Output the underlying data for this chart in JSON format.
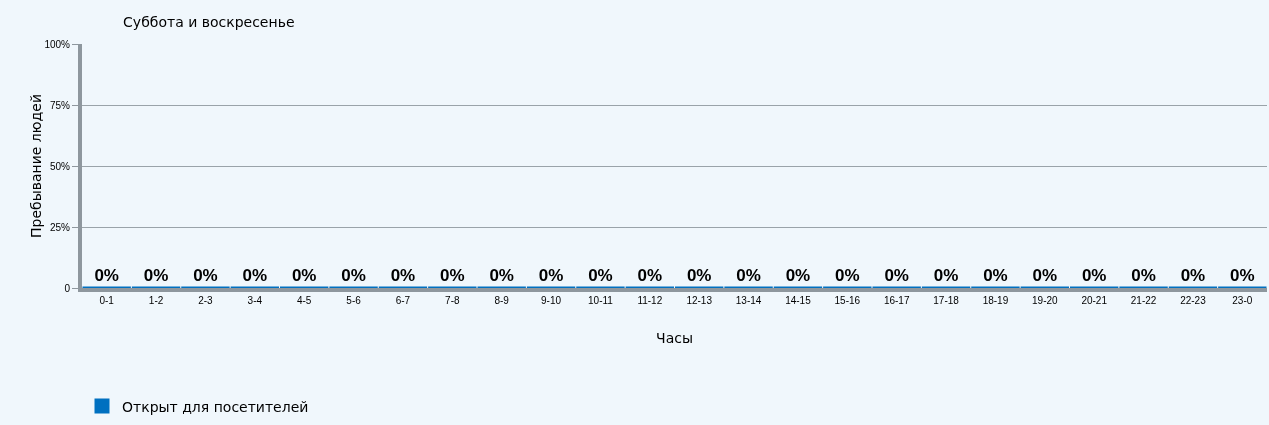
{
  "chart_data": {
    "type": "bar",
    "title": "Суббота и воскресенье",
    "xlabel": "Часы",
    "ylabel": "Пребывание людей",
    "categories": [
      "0-1",
      "1-2",
      "2-3",
      "3-4",
      "4-5",
      "5-6",
      "6-7",
      "7-8",
      "8-9",
      "9-10",
      "10-11",
      "11-12",
      "12-13",
      "13-14",
      "14-15",
      "15-16",
      "16-17",
      "17-18",
      "18-19",
      "19-20",
      "20-21",
      "21-22",
      "22-23",
      "23-0"
    ],
    "series": [
      {
        "name": "Открыт для посетителей",
        "color": "#0070c0",
        "values": [
          0,
          0,
          0,
          0,
          0,
          0,
          0,
          0,
          0,
          0,
          0,
          0,
          0,
          0,
          0,
          0,
          0,
          0,
          0,
          0,
          0,
          0,
          0,
          0
        ],
        "value_labels": [
          "0%",
          "0%",
          "0%",
          "0%",
          "0%",
          "0%",
          "0%",
          "0%",
          "0%",
          "0%",
          "0%",
          "0%",
          "0%",
          "0%",
          "0%",
          "0%",
          "0%",
          "0%",
          "0%",
          "0%",
          "0%",
          "0%",
          "0%",
          "0%"
        ]
      }
    ],
    "ylim": [
      0,
      100
    ],
    "yticks": [
      {
        "value": 0,
        "label": "0"
      },
      {
        "value": 25,
        "label": "25%"
      },
      {
        "value": 50,
        "label": "50%"
      },
      {
        "value": 75,
        "label": "75%"
      },
      {
        "value": 100,
        "label": "100%"
      }
    ],
    "grid": "y",
    "legend": "bottom left"
  }
}
